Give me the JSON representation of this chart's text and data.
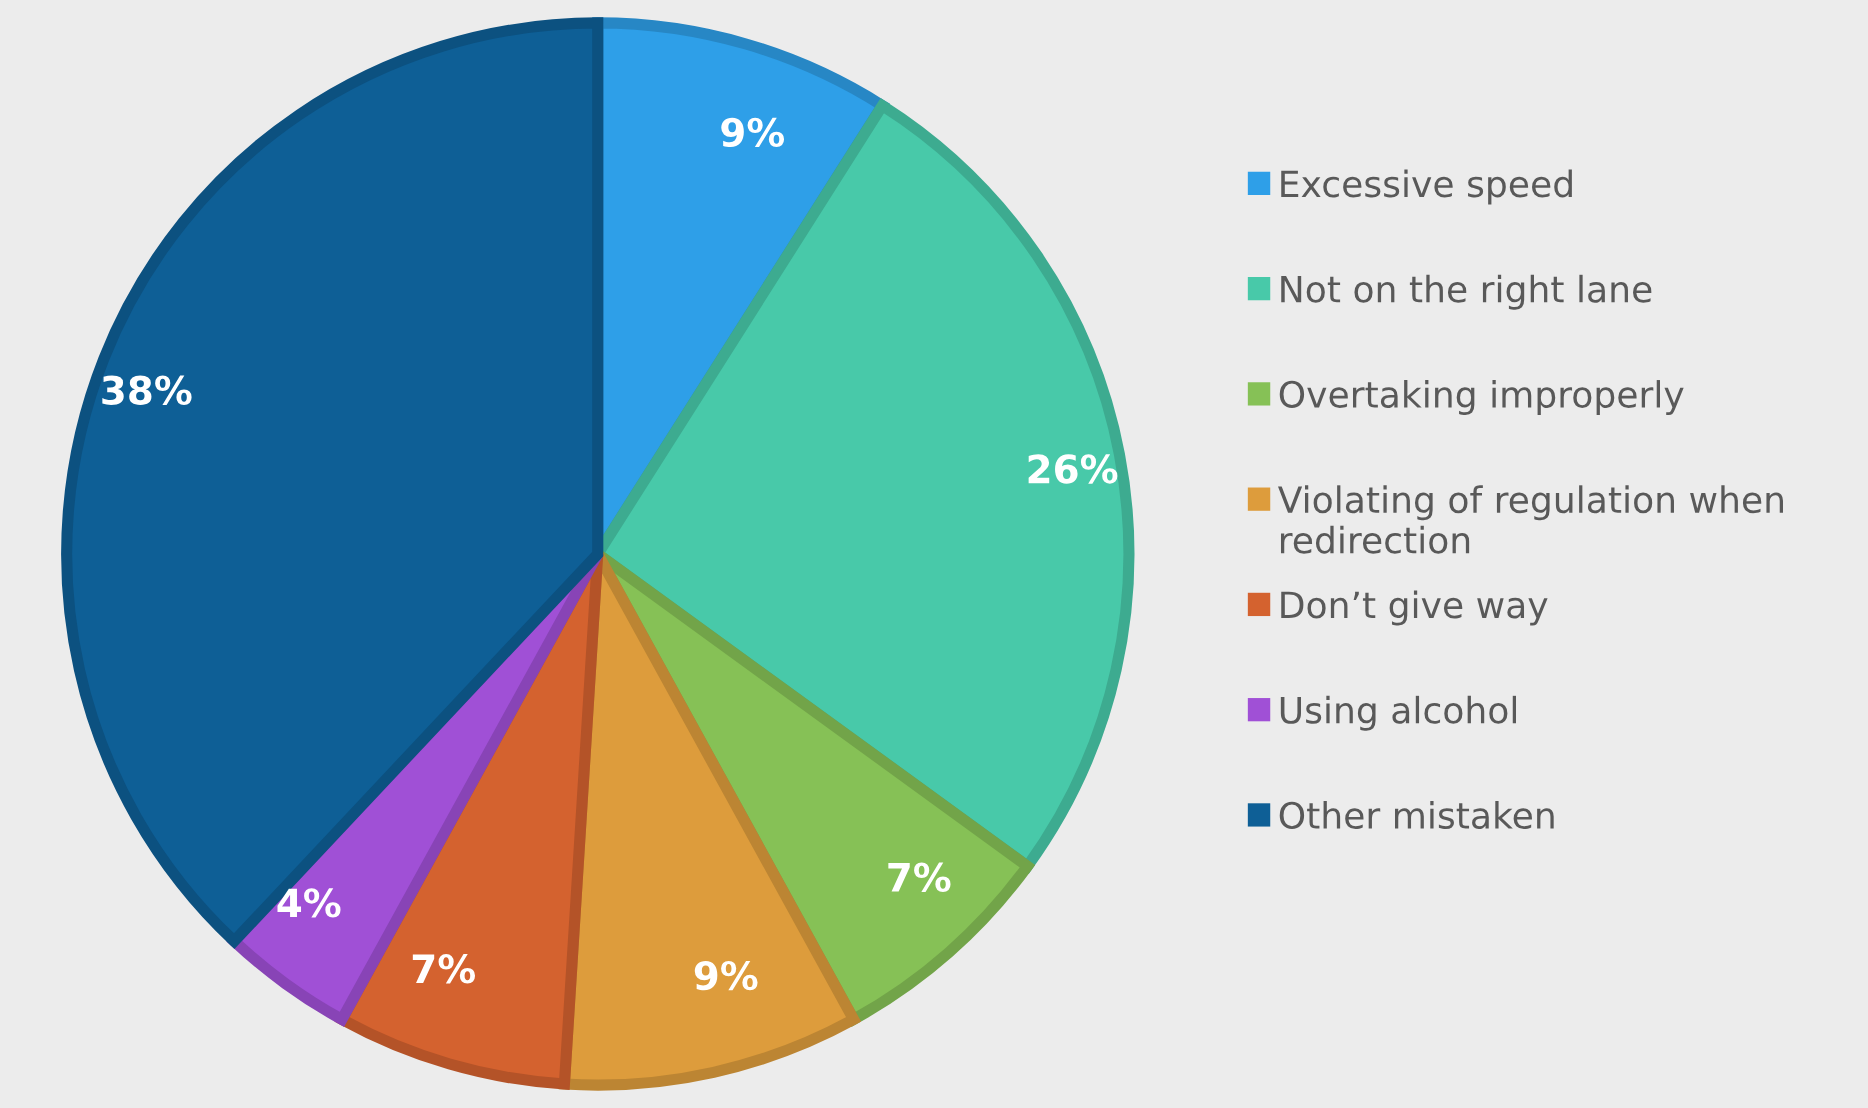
{
  "chart_data": {
    "type": "pie",
    "categories": [
      "Excessive speed",
      "Not on the right lane",
      "Overtaking improperly",
      "Violating of regulation when redirection",
      "Don’t give way",
      "Using alcohol",
      "Other mistaken"
    ],
    "values": [
      9,
      26,
      7,
      9,
      7,
      4,
      38
    ],
    "colors": [
      "#2e9fe8",
      "#48c9a9",
      "#86c156",
      "#dd9c3c",
      "#d4622f",
      "#a050d6",
      "#0e5f96"
    ],
    "value_labels": [
      "9%",
      "26%",
      "7%",
      "9%",
      "7%",
      "4%",
      "38%"
    ],
    "legend": "right"
  }
}
